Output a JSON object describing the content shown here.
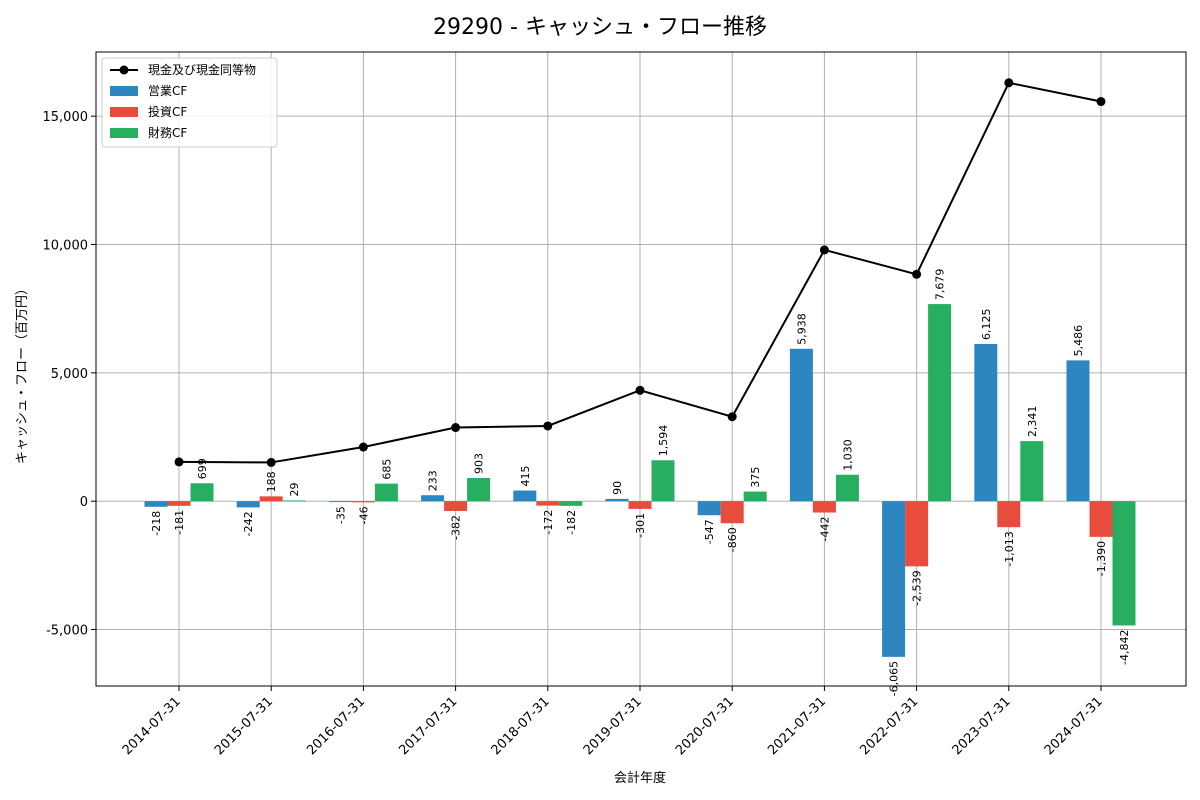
{
  "chart_data": {
    "type": "bar",
    "title": "29290 - キャッシュ・フロー推移",
    "xlabel": "会計年度",
    "ylabel": "キャッシュ・フロー（百万円）",
    "categories": [
      "2014-07-31",
      "2015-07-31",
      "2016-07-31",
      "2017-07-31",
      "2018-07-31",
      "2019-07-31",
      "2020-07-31",
      "2021-07-31",
      "2022-07-31",
      "2023-07-31",
      "2024-07-31"
    ],
    "ylim": [
      -7200,
      17500
    ],
    "yticks": [
      -5000,
      0,
      5000,
      10000,
      15000
    ],
    "ytick_labels": [
      "-5,000",
      "0",
      "5,000",
      "10,000",
      "15,000"
    ],
    "grid": true,
    "legend_position": "top-left",
    "series": [
      {
        "name": "営業CF",
        "kind": "bar",
        "color": "#2e86c1",
        "values": [
          -218,
          -242,
          -35,
          233,
          415,
          90,
          -547,
          5938,
          -6065,
          6125,
          5486
        ],
        "labels": [
          "-218",
          "-242",
          "-35",
          "233",
          "415",
          "90",
          "-547",
          "5,938",
          "-6,065",
          "6,125",
          "5,486"
        ]
      },
      {
        "name": "投資CF",
        "kind": "bar",
        "color": "#e74c3c",
        "values": [
          -181,
          188,
          -46,
          -382,
          -172,
          -301,
          -860,
          -442,
          -2539,
          -1013,
          -1390
        ],
        "labels": [
          "-181",
          "188",
          "-46",
          "-382",
          "-172",
          "-301",
          "-860",
          "-442",
          "-2,539",
          "-1,013",
          "-1,390"
        ]
      },
      {
        "name": "財務CF",
        "kind": "bar",
        "color": "#27ae60",
        "values": [
          699,
          29,
          685,
          903,
          -182,
          1594,
          375,
          1030,
          7679,
          2341,
          -4842
        ],
        "labels": [
          "699",
          "29",
          "685",
          "903",
          "-182",
          "1,594",
          "375",
          "1,030",
          "7,679",
          "2,341",
          "-4,842"
        ]
      },
      {
        "name": "現金及び現金同等物",
        "kind": "line",
        "color": "#000000",
        "values": [
          1530,
          1510,
          2110,
          2870,
          2930,
          4320,
          3290,
          9790,
          8840,
          16300,
          15570
        ]
      }
    ]
  }
}
